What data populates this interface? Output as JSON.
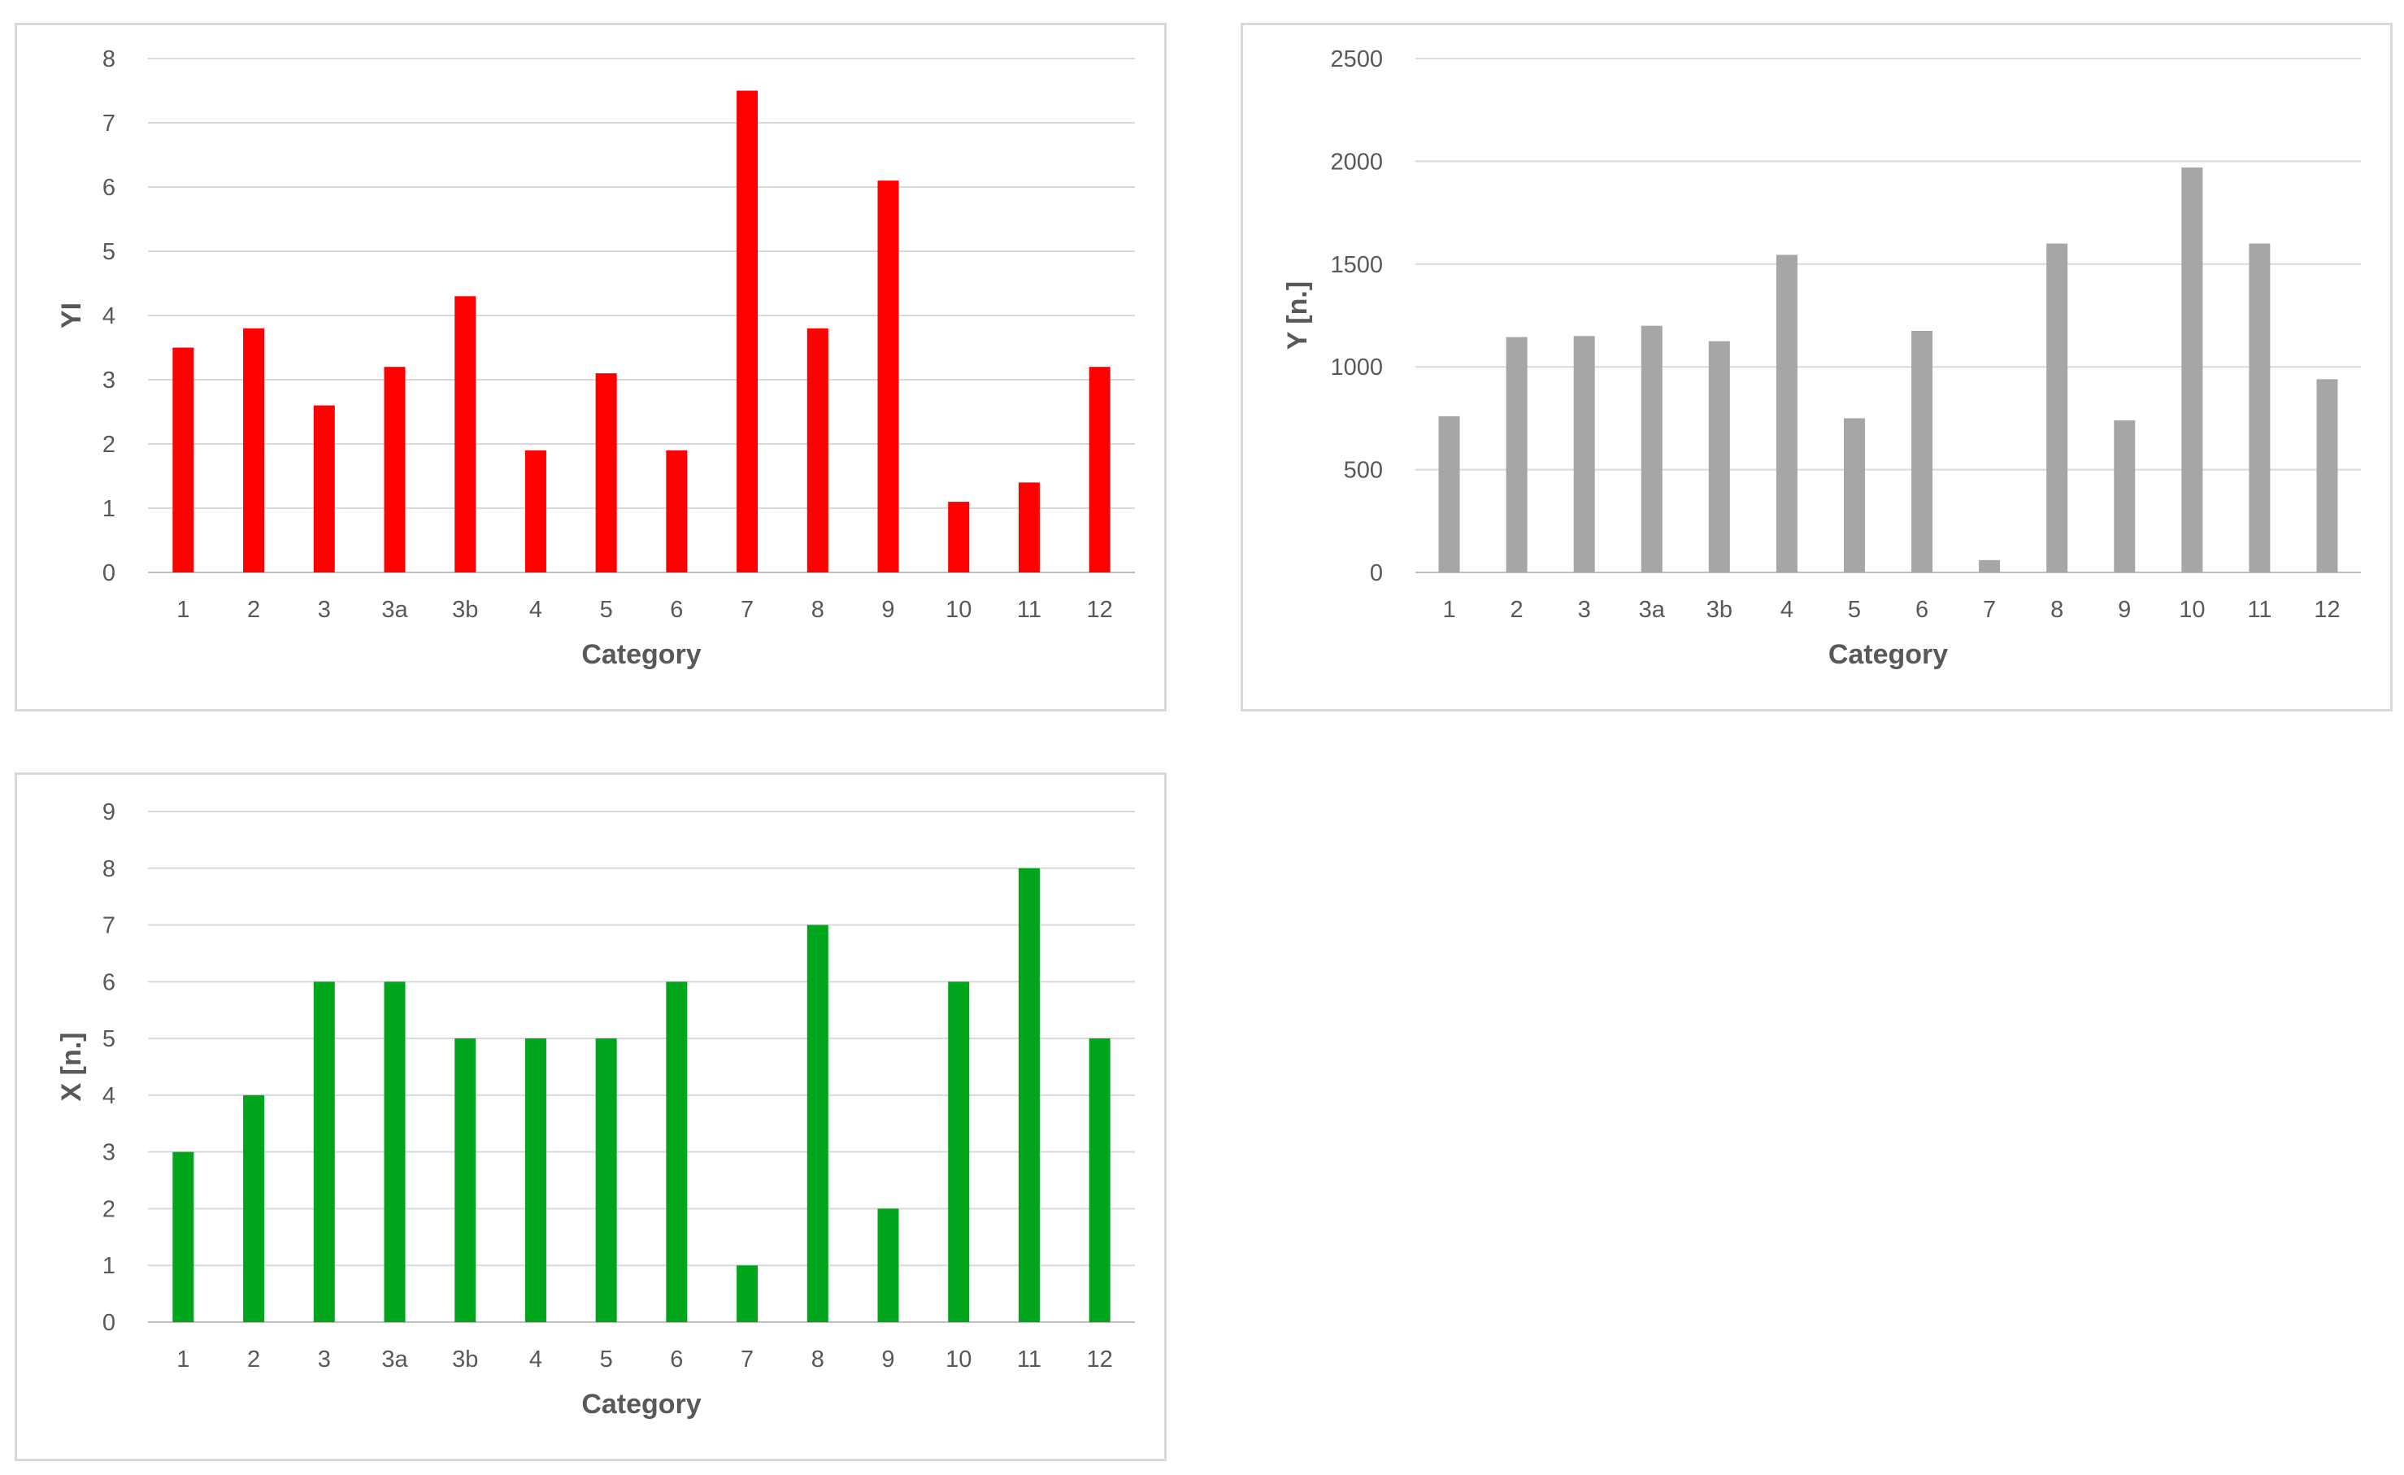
{
  "chart_data": [
    {
      "type": "bar",
      "title": "",
      "xlabel": "Category",
      "ylabel": "YI",
      "ylim": [
        0,
        8
      ],
      "yticks": [
        "0",
        "1",
        "2",
        "3",
        "4",
        "5",
        "6",
        "7",
        "8"
      ],
      "grid": true,
      "legend": "none",
      "color": "#ff0000",
      "categories": [
        "1",
        "2",
        "3",
        "3a",
        "3b",
        "4",
        "5",
        "6",
        "7",
        "8",
        "9",
        "10",
        "11",
        "12"
      ],
      "values": [
        3.5,
        3.8,
        2.6,
        3.2,
        4.3,
        1.9,
        3.1,
        1.9,
        7.5,
        3.8,
        6.1,
        1.1,
        1.4,
        3.2
      ]
    },
    {
      "type": "bar",
      "title": "",
      "xlabel": "Category",
      "ylabel": "Y [n.]",
      "ylim": [
        0,
        2500
      ],
      "yticks": [
        "0",
        "500",
        "1000",
        "1500",
        "2000",
        "2500"
      ],
      "grid": true,
      "legend": "none",
      "color": "#a6a6a6",
      "categories": [
        "1",
        "2",
        "3",
        "3a",
        "3b",
        "4",
        "5",
        "6",
        "7",
        "8",
        "9",
        "10",
        "11",
        "12"
      ],
      "values": [
        760,
        1145,
        1150,
        1200,
        1125,
        1545,
        750,
        1175,
        60,
        1600,
        740,
        1970,
        1600,
        940
      ]
    },
    {
      "type": "bar",
      "title": "",
      "xlabel": "Category",
      "ylabel": "X [n.]",
      "ylim": [
        0,
        9
      ],
      "yticks": [
        "0",
        "1",
        "2",
        "3",
        "4",
        "5",
        "6",
        "7",
        "8",
        "9"
      ],
      "grid": true,
      "legend": "none",
      "color": "#00a51c",
      "categories": [
        "1",
        "2",
        "3",
        "3a",
        "3b",
        "4",
        "5",
        "6",
        "7",
        "8",
        "9",
        "10",
        "11",
        "12"
      ],
      "values": [
        3,
        4,
        6,
        6,
        5,
        5,
        5,
        6,
        1,
        7,
        2,
        6,
        8,
        5
      ]
    }
  ]
}
